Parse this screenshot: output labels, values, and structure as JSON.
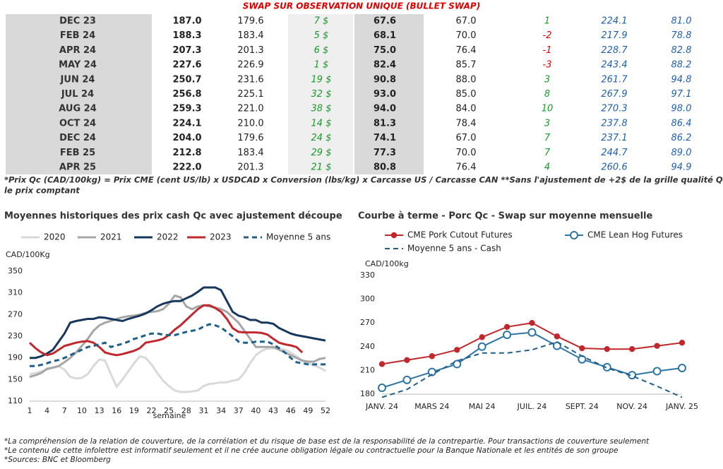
{
  "table": {
    "title": "SWAP SUR OBSERVATION UNIQUE (BULLET SWAP)",
    "rows": [
      [
        "DEC 23",
        "187.0",
        "179.6",
        "7 $",
        "67.6",
        "67.0",
        "1",
        "224.1",
        "81.0"
      ],
      [
        "FEB 24",
        "188.3",
        "183.4",
        "5 $",
        "68.1",
        "70.0",
        "-2",
        "217.9",
        "78.8"
      ],
      [
        "APR 24",
        "207.3",
        "201.3",
        "6 $",
        "75.0",
        "76.4",
        "-1",
        "228.7",
        "82.8"
      ],
      [
        "MAY 24",
        "227.6",
        "226.9",
        "1 $",
        "82.4",
        "85.7",
        "-3",
        "243.4",
        "88.2"
      ],
      [
        "JUN 24",
        "250.7",
        "231.6",
        "19 $",
        "90.8",
        "88.0",
        "3",
        "261.7",
        "94.8"
      ],
      [
        "JUL 24",
        "256.8",
        "225.1",
        "32 $",
        "93.0",
        "85.0",
        "8",
        "267.9",
        "97.1"
      ],
      [
        "AUG 24",
        "259.3",
        "221.0",
        "38 $",
        "94.0",
        "84.0",
        "10",
        "270.3",
        "98.0"
      ],
      [
        "OCT 24",
        "224.1",
        "210.0",
        "14 $",
        "81.3",
        "78.4",
        "3",
        "237.8",
        "86.4"
      ],
      [
        "DEC 24",
        "204.0",
        "179.6",
        "24 $",
        "74.1",
        "67.0",
        "7",
        "237.1",
        "86.2"
      ],
      [
        "FEB 25",
        "212.8",
        "183.4",
        "29 $",
        "77.3",
        "70.0",
        "7",
        "244.7",
        "89.0"
      ],
      [
        "APR 25",
        "222.0",
        "201.3",
        "21 $",
        "80.8",
        "76.4",
        "4",
        "260.6",
        "94.9"
      ]
    ],
    "notes": [
      "*Prix Qc (CAD/100kg) = Prix CME (cent US/lb) x USDCAD x Conversion (lbs/kg) x Carcasse US / Carcasse CAN **Sans l'ajustement de +2$ de la grille qualité Québec pour",
      "le prix comptant"
    ]
  },
  "chart_data": [
    {
      "type": "line",
      "title": "Moyennes historiques des prix cash Qc avec ajustement découpe",
      "y_label": "CAD/100Kg",
      "x_label": "semaine",
      "x": [
        1,
        2,
        3,
        4,
        5,
        6,
        7,
        8,
        9,
        10,
        11,
        12,
        13,
        14,
        15,
        16,
        17,
        18,
        19,
        20,
        21,
        22,
        23,
        24,
        25,
        26,
        27,
        28,
        29,
        30,
        31,
        32,
        33,
        34,
        35,
        36,
        37,
        38,
        39,
        40,
        41,
        42,
        43,
        44,
        45,
        46,
        47,
        48,
        49,
        50,
        51,
        52
      ],
      "xlim": [
        1,
        52
      ],
      "xticks": [
        1,
        4,
        7,
        10,
        13,
        16,
        19,
        22,
        25,
        28,
        31,
        34,
        37,
        40,
        43,
        46,
        49,
        52
      ],
      "ylim": [
        110,
        350
      ],
      "yticks": [
        110,
        150,
        190,
        230,
        270,
        310,
        350
      ],
      "grid": false,
      "series": [
        {
          "name": "2020",
          "color": "#d9d9d9",
          "values": [
            160,
            162,
            165,
            168,
            172,
            175,
            168,
            155,
            152,
            153,
            160,
            175,
            187,
            185,
            160,
            137,
            150,
            165,
            180,
            193,
            190,
            178,
            162,
            148,
            138,
            130,
            127,
            127,
            128,
            130,
            138,
            142,
            143,
            145,
            145,
            148,
            150,
            162,
            180,
            195,
            203,
            207,
            208,
            207,
            205,
            200,
            193,
            185,
            180,
            176,
            172,
            166
          ]
        },
        {
          "name": "2021",
          "color": "#a6a6a6",
          "values": [
            155,
            158,
            162,
            170,
            172,
            175,
            182,
            190,
            200,
            212,
            225,
            240,
            250,
            255,
            258,
            262,
            265,
            267,
            268,
            270,
            273,
            275,
            276,
            280,
            290,
            305,
            302,
            285,
            280,
            285,
            287,
            285,
            283,
            280,
            275,
            265,
            255,
            240,
            225,
            210,
            210,
            210,
            210,
            205,
            200,
            195,
            190,
            185,
            183,
            183,
            188,
            190
          ]
        },
        {
          "name": "2022",
          "color": "#17375e",
          "values": [
            190,
            190,
            193,
            198,
            205,
            220,
            235,
            255,
            258,
            260,
            262,
            262,
            265,
            264,
            262,
            260,
            258,
            262,
            265,
            268,
            272,
            278,
            285,
            290,
            293,
            295,
            295,
            300,
            305,
            312,
            320,
            320,
            320,
            315,
            295,
            275,
            268,
            265,
            260,
            260,
            255,
            255,
            253,
            245,
            240,
            235,
            232,
            230,
            228,
            226,
            224,
            222
          ]
        },
        {
          "name": "2023",
          "color": "#c0282d",
          "values": [
            218,
            208,
            200,
            195,
            198,
            205,
            212,
            215,
            218,
            220,
            221,
            218,
            210,
            200,
            197,
            195,
            197,
            200,
            203,
            208,
            218,
            220,
            222,
            225,
            232,
            242,
            250,
            260,
            270,
            280,
            287,
            287,
            282,
            275,
            262,
            245,
            238,
            237,
            237,
            237,
            236,
            233,
            225,
            218,
            215,
            213,
            210,
            200,
            null,
            null,
            null,
            null
          ]
        },
        {
          "name": "Moyenne 5 ans",
          "color": "#1f5f8b",
          "dashed": true,
          "values": [
            175,
            175,
            177,
            180,
            184,
            186,
            190,
            195,
            200,
            205,
            210,
            212,
            215,
            218,
            210,
            213,
            216,
            220,
            225,
            228,
            232,
            235,
            235,
            233,
            232,
            232,
            235,
            238,
            240,
            242,
            248,
            252,
            250,
            246,
            238,
            230,
            220,
            218,
            218,
            220,
            220,
            220,
            215,
            208,
            200,
            190,
            182,
            180,
            178,
            178,
            178,
            178
          ]
        }
      ]
    },
    {
      "type": "line",
      "title": "Courbe à terme - Porc Qc - Swap sur moyenne mensuelle",
      "y_label": "CAD/100kg",
      "categories": [
        "JANV. 24",
        null,
        "MARS 24",
        null,
        "MAI 24",
        null,
        "JUIL. 24",
        null,
        "SEPT. 24",
        null,
        "NOV. 24",
        null,
        "JANV. 25"
      ],
      "ylim": [
        180,
        330
      ],
      "yticks": [
        180,
        210,
        240,
        270,
        300,
        330
      ],
      "grid": false,
      "series": [
        {
          "name": "CME Pork Cutout Futures",
          "color": "#c0282d",
          "marker": "dot",
          "values": [
            218,
            223,
            228,
            236,
            252,
            265,
            270,
            253,
            238,
            237,
            237,
            241,
            245
          ]
        },
        {
          "name": "CME Lean Hog Futures",
          "color": "#2e75a6",
          "marker": "circle",
          "values": [
            188,
            198,
            208,
            218,
            240,
            255,
            258,
            241,
            224,
            214,
            204,
            209,
            213
          ]
        },
        {
          "name": "Moyenne 5 ans - Cash",
          "color": "#1f5f8b",
          "dashed": true,
          "values": [
            176,
            186,
            205,
            222,
            232,
            232,
            236,
            246,
            228,
            213,
            203,
            190,
            176
          ]
        }
      ]
    }
  ],
  "footer": [
    "*La compréhension de la relation de couverture, de la corrélation et du risque de base est de la responsabilité de la contrepartie. Pour transactions de couverture seulement",
    "*Le contenu de cette infolettre est informatif seulement et il ne crée aucune obligation légale ou contractuelle pour la Banque Nationale et les entités de son groupe",
    "*Sources: BNC et Bloomberg"
  ]
}
